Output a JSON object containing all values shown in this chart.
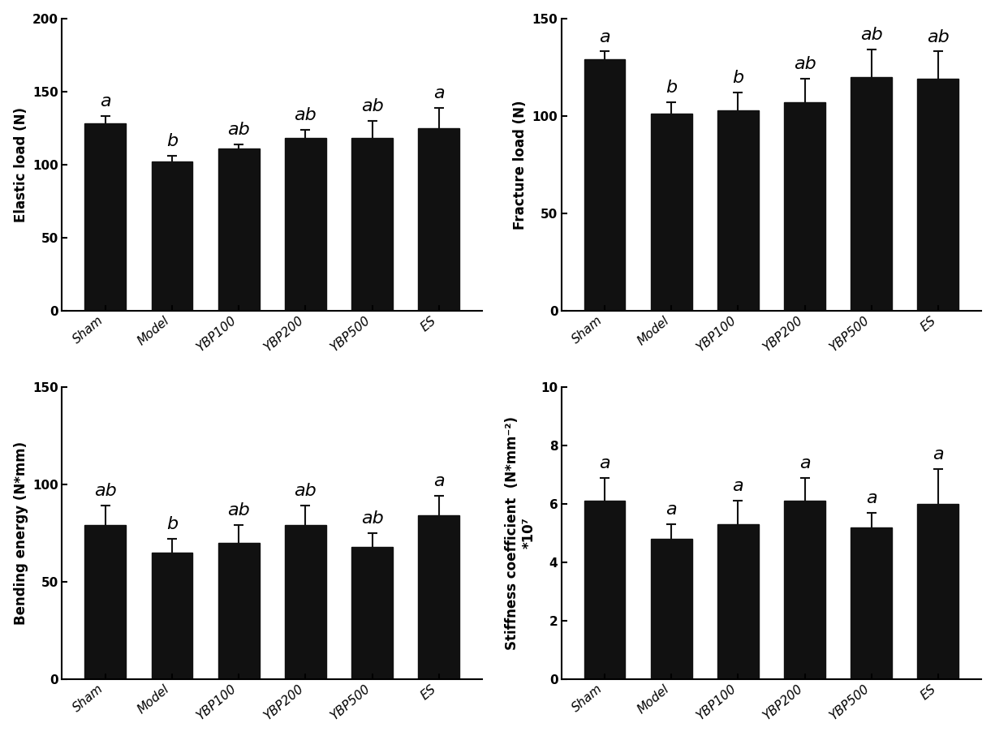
{
  "categories": [
    "Sham",
    "Model",
    "YBP100",
    "YBP200",
    "YBP500",
    "ES"
  ],
  "panels": [
    {
      "ylabel": "Elastic load (N)",
      "ylim": [
        0,
        200
      ],
      "yticks": [
        0,
        50,
        100,
        150,
        200
      ],
      "values": [
        128,
        102,
        111,
        118,
        118,
        125
      ],
      "errors": [
        5,
        4,
        3,
        6,
        12,
        14
      ],
      "labels": [
        "a",
        "b",
        "ab",
        "ab",
        "ab",
        "a"
      ]
    },
    {
      "ylabel": "Fracture load (N)",
      "ylim": [
        0,
        150
      ],
      "yticks": [
        0,
        50,
        100,
        150
      ],
      "values": [
        129,
        101,
        103,
        107,
        120,
        119
      ],
      "errors": [
        4,
        6,
        9,
        12,
        14,
        14
      ],
      "labels": [
        "a",
        "b",
        "b",
        "ab",
        "ab",
        "ab"
      ]
    },
    {
      "ylabel": "Bending energy (N*mm)",
      "ylim": [
        0,
        150
      ],
      "yticks": [
        0,
        50,
        100,
        150
      ],
      "values": [
        79,
        65,
        70,
        79,
        68,
        84
      ],
      "errors": [
        10,
        7,
        9,
        10,
        7,
        10
      ],
      "labels": [
        "ab",
        "b",
        "ab",
        "ab",
        "ab",
        "a"
      ]
    },
    {
      "ylabel": "Stiffness coefficient  (N*mm⁻²)\n*10⁷",
      "ylim": [
        0,
        10
      ],
      "yticks": [
        0,
        2,
        4,
        6,
        8,
        10
      ],
      "values": [
        6.1,
        4.8,
        5.3,
        6.1,
        5.2,
        6.0
      ],
      "errors": [
        0.8,
        0.5,
        0.8,
        0.8,
        0.5,
        1.2
      ],
      "labels": [
        "a",
        "a",
        "a",
        "a",
        "a",
        "a"
      ]
    }
  ],
  "bar_color": "#111111",
  "error_color": "#111111",
  "bar_width": 0.62,
  "ylabel_fontsize": 12,
  "tick_fontsize": 11,
  "annot_fontsize": 16,
  "xlabel_rotation": 40
}
